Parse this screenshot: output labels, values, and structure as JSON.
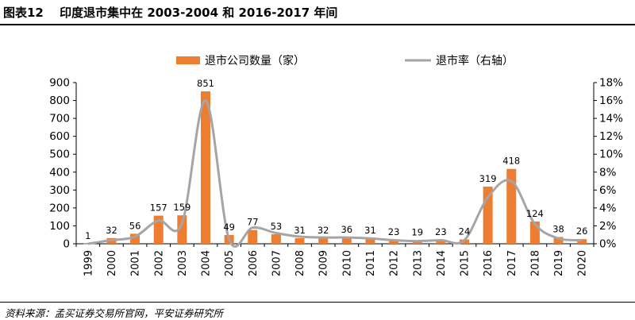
{
  "title": "图表12　 印度退市集中在 2003-2004 和 2016-2017 年间",
  "source": "资料来源：孟买证券交易所官网，平安证券研究所",
  "chart_data": {
    "type": "bar",
    "categories": [
      "1999",
      "2000",
      "2001",
      "2002",
      "2003",
      "2004",
      "2005",
      "2006",
      "2007",
      "2008",
      "2009",
      "2010",
      "2011",
      "2012",
      "2013",
      "2014",
      "2015",
      "2016",
      "2017",
      "2018",
      "2019",
      "2020"
    ],
    "series": [
      {
        "name": "退市公司数量（家）",
        "type": "bar",
        "axis": "left",
        "color": "#ED7D31",
        "values": [
          1,
          32,
          56,
          157,
          159,
          851,
          49,
          77,
          53,
          31,
          32,
          36,
          31,
          23,
          19,
          23,
          24,
          319,
          418,
          124,
          38,
          26
        ]
      },
      {
        "name": "退市率（右轴）",
        "type": "line",
        "axis": "right",
        "color": "#A5A5A5",
        "values": [
          0.0,
          0.4,
          0.8,
          2.6,
          2.3,
          16.0,
          0.5,
          1.8,
          1.2,
          0.8,
          0.7,
          0.7,
          0.6,
          0.4,
          0.3,
          0.4,
          0.4,
          5.2,
          7.0,
          2.2,
          0.6,
          0.4
        ]
      }
    ],
    "y_left": {
      "ylim": [
        0,
        900
      ],
      "ticks": [
        "0",
        "100",
        "200",
        "300",
        "400",
        "500",
        "600",
        "700",
        "800",
        "900"
      ]
    },
    "y_right": {
      "ylim": [
        0,
        18
      ],
      "ticks": [
        "0%",
        "2%",
        "4%",
        "6%",
        "8%",
        "10%",
        "12%",
        "14%",
        "16%",
        "18%"
      ]
    },
    "legend_position": "top",
    "grid": false
  }
}
